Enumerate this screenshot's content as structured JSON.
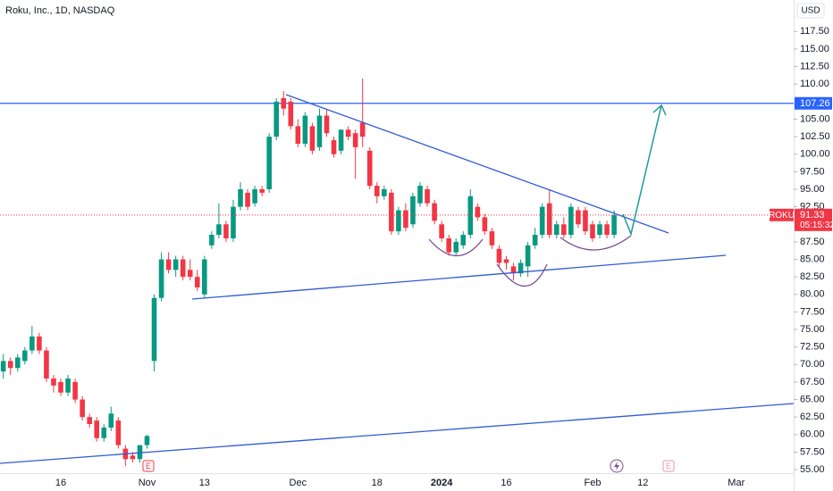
{
  "chart_data": {
    "type": "candlestick",
    "title": "Roku, Inc., 1D, NASDAQ",
    "currency": "USD",
    "symbol": "ROKU",
    "countdown": "05:15:32",
    "categories": [
      null,
      null,
      null,
      null,
      null,
      null,
      null,
      null,
      "16",
      null,
      null,
      null,
      null,
      null,
      null,
      null,
      null,
      null,
      null,
      null,
      "Nov",
      null,
      null,
      null,
      null,
      null,
      null,
      null,
      "13",
      null,
      null,
      null,
      null,
      null,
      null,
      null,
      null,
      null,
      null,
      null,
      null,
      "Dec",
      null,
      null,
      null,
      null,
      null,
      null,
      null,
      null,
      null,
      null,
      "18",
      null,
      null,
      null,
      null,
      null,
      null,
      null,
      null,
      "2024",
      null,
      null,
      null,
      null,
      null,
      null,
      null,
      null,
      "16",
      null,
      null,
      null,
      null,
      null,
      null,
      null,
      null,
      null,
      null,
      null,
      "Feb",
      null,
      null,
      null,
      null,
      null,
      null,
      "12",
      null,
      null,
      null,
      null,
      null,
      null,
      null,
      null,
      null,
      null,
      null,
      null,
      "Mar",
      null,
      null,
      null,
      null,
      null,
      null,
      null,
      null
    ],
    "open": [
      69,
      70.5,
      69.5,
      70.5,
      72,
      74,
      72,
      68,
      67.5,
      66,
      67.5,
      65,
      62.5,
      62,
      59.5,
      61,
      62,
      58,
      57,
      56.5,
      58.5,
      70.5,
      79.5,
      85,
      83.5,
      85,
      83.5,
      82.5,
      80,
      87,
      88.5,
      90,
      88,
      92.5,
      94.5,
      93,
      95,
      95,
      102.5,
      108,
      107.5,
      104,
      101.5,
      104,
      101,
      105.5,
      102,
      100.5,
      103.5,
      103,
      104.5,
      100.5,
      95.5,
      94,
      94.5,
      89,
      92,
      90,
      93,
      95,
      93,
      90,
      88,
      86,
      87,
      88.5,
      92.5,
      91,
      89,
      86.5,
      85,
      84,
      83,
      84,
      87,
      88.5,
      93,
      88.5,
      90,
      88.5,
      92,
      92,
      90,
      88.5,
      90,
      88.5,
      null,
      null,
      null,
      null,
      null,
      null,
      null,
      null,
      null,
      null,
      null,
      null,
      null,
      null,
      null,
      null,
      null,
      null,
      null,
      null,
      null,
      null,
      null,
      null,
      null
    ],
    "high": [
      71.5,
      71,
      71.5,
      72.5,
      75.5,
      74.5,
      72.5,
      68.5,
      68,
      68.5,
      68,
      65.5,
      63,
      62.5,
      61.5,
      64,
      62.5,
      58.5,
      57.5,
      58.5,
      60,
      80,
      86,
      86,
      85.5,
      85.5,
      85,
      83.5,
      85.5,
      89,
      93,
      90.5,
      93.5,
      96,
      95,
      95.5,
      95.5,
      103,
      108,
      109,
      108,
      105,
      106,
      104.5,
      106.5,
      106.5,
      102.5,
      103.5,
      104,
      103.5,
      110.8,
      101,
      96,
      95.5,
      95,
      92.5,
      93,
      94.5,
      96,
      95.5,
      93.5,
      90.5,
      88.5,
      88,
      89,
      95,
      93,
      91.5,
      89.5,
      87,
      85.5,
      84.5,
      85,
      87.5,
      89.5,
      93,
      95,
      90.5,
      91,
      93,
      92.5,
      92.5,
      90.5,
      90.5,
      90.5,
      92,
      null,
      null,
      null,
      null,
      null,
      null,
      null,
      null,
      null,
      null,
      null,
      null,
      null,
      null,
      null,
      null,
      null,
      null,
      null,
      null,
      null,
      null,
      null,
      null,
      null
    ],
    "low": [
      68,
      68.5,
      69,
      70,
      71.5,
      71.5,
      67.5,
      66,
      65.5,
      65.5,
      64.5,
      62,
      61,
      59,
      59,
      60.5,
      58,
      55.5,
      56,
      56,
      58,
      69,
      79,
      83,
      82.5,
      82,
      82,
      80.5,
      79.5,
      86.5,
      88,
      87.5,
      87.5,
      92,
      92,
      92.5,
      94,
      94.5,
      102,
      105.5,
      103.5,
      101,
      101,
      100,
      100.5,
      102.5,
      99.5,
      100,
      102,
      96.5,
      101,
      95,
      93,
      93.5,
      88.5,
      88.5,
      89,
      89.5,
      92.5,
      92.5,
      90,
      87.5,
      85.5,
      85.5,
      86.5,
      88,
      90.5,
      88.5,
      86.5,
      84,
      83.5,
      82,
      82.5,
      82.5,
      86.5,
      88,
      88,
      88,
      88,
      88,
      89.5,
      88.5,
      87.5,
      88,
      88,
      88,
      null,
      null,
      null,
      null,
      null,
      null,
      null,
      null,
      null,
      null,
      null,
      null,
      null,
      null,
      null,
      null,
      null,
      null,
      null,
      null,
      null,
      null,
      null,
      null,
      null
    ],
    "close": [
      70.5,
      69.5,
      71,
      72,
      74,
      72,
      68,
      67,
      66,
      68,
      65,
      62.5,
      61.5,
      59.5,
      61,
      63,
      58.5,
      56.5,
      56.5,
      58.5,
      59.8,
      79.5,
      85,
      83.5,
      85,
      82.5,
      82.5,
      81,
      85,
      88.5,
      90,
      88,
      92.5,
      95,
      92.5,
      95,
      94.5,
      102.5,
      107.5,
      106.5,
      104,
      101.5,
      105.5,
      100.5,
      105.5,
      103,
      100,
      103.5,
      102.5,
      101,
      102.5,
      95.5,
      94,
      95,
      89,
      92,
      89.5,
      94,
      95.5,
      93,
      90.5,
      88,
      86,
      87.5,
      88.5,
      94,
      91,
      89,
      87,
      84.5,
      84.5,
      83,
      84.5,
      87,
      88.5,
      92.5,
      88.5,
      90,
      88.5,
      92.5,
      90,
      89,
      88,
      90,
      88.5,
      91.33,
      null,
      null,
      null,
      null,
      null,
      null,
      null,
      null,
      null,
      null,
      null,
      null,
      null,
      null,
      null,
      null,
      null,
      null,
      null,
      null,
      null,
      null,
      null,
      null,
      null
    ],
    "up_color": "#089981",
    "down_color": "#f23645",
    "hline": 107.26,
    "hline_color": "#2962ff",
    "earnings_markers": [
      "E",
      "E"
    ],
    "ylim": [
      54.5,
      122
    ],
    "yticks": [
      {
        "value": 55,
        "label": "55.00"
      },
      {
        "value": 57.5,
        "label": "57.50"
      },
      {
        "value": 60,
        "label": "60.00"
      },
      {
        "value": 62.5,
        "label": "62.50"
      },
      {
        "value": 65,
        "label": "65.00"
      },
      {
        "value": 67.5,
        "label": "67.50"
      },
      {
        "value": 70,
        "label": "70.00"
      },
      {
        "value": 72.5,
        "label": "72.50"
      },
      {
        "value": 75,
        "label": "75.00"
      },
      {
        "value": 77.5,
        "label": "77.50"
      },
      {
        "value": 80,
        "label": "80.00"
      },
      {
        "value": 82.5,
        "label": "82.50"
      },
      {
        "value": 85,
        "label": "85.00"
      },
      {
        "value": 87.5,
        "label": "87.50"
      },
      {
        "value": 92.5,
        "label": "92.50"
      },
      {
        "value": 95,
        "label": "95.00"
      },
      {
        "value": 97.5,
        "label": "97.50"
      },
      {
        "value": 100,
        "label": "100.00"
      },
      {
        "value": 102.5,
        "label": "102.50"
      },
      {
        "value": 105,
        "label": "105.00"
      },
      {
        "value": 110,
        "label": "110.00"
      },
      {
        "value": 112.5,
        "label": "112.50"
      },
      {
        "value": 115,
        "label": "115.00"
      },
      {
        "value": 117.5,
        "label": "117.50"
      }
    ],
    "grid": false
  }
}
